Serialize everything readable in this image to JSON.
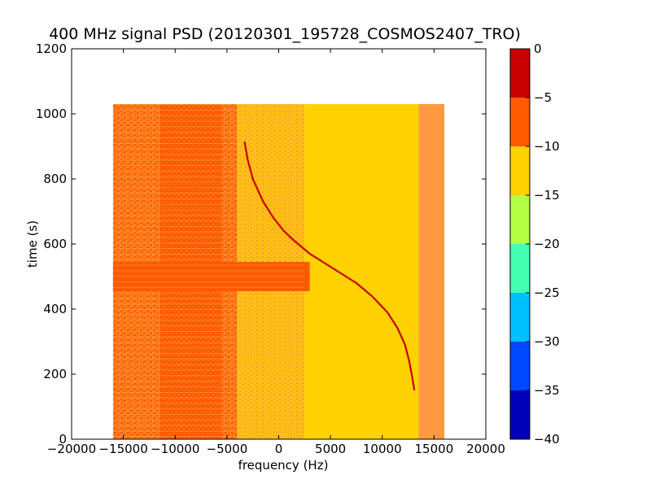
{
  "chart_data": {
    "type": "heatmap",
    "title": "400 MHz signal PSD (20120301_195728_COSMOS2407_TRO)",
    "xlabel": "frequency (Hz)",
    "ylabel": "time (s)",
    "xlim": [
      -20000,
      20000
    ],
    "ylim": [
      0,
      1200
    ],
    "x_ticks": [
      -20000,
      -15000,
      -10000,
      -5000,
      0,
      5000,
      10000,
      15000,
      20000
    ],
    "x_tick_labels": [
      "−20000",
      "−15000",
      "−10000",
      "−5000",
      "0",
      "5000",
      "10000",
      "15000",
      "20000"
    ],
    "y_ticks": [
      0,
      200,
      400,
      600,
      800,
      1000,
      1200
    ],
    "y_tick_labels": [
      "0",
      "200",
      "400",
      "600",
      "800",
      "1000",
      "1200"
    ],
    "data_extent": {
      "x": [
        -16000,
        16000
      ],
      "y": [
        0,
        1030
      ]
    },
    "colorbar": {
      "levels": [
        -40,
        -35,
        -30,
        -25,
        -20,
        -15,
        -10,
        -5,
        0
      ],
      "tick_labels": [
        "−40",
        "−35",
        "−30",
        "−25",
        "−20",
        "−15",
        "−10",
        "−5",
        "0"
      ],
      "band_colors": [
        "#0000b8",
        "#0048ff",
        "#00c0ff",
        "#44ffb2",
        "#b4ff44",
        "#ffd200",
        "#ff5a00",
        "#c80000"
      ]
    },
    "regions": [
      {
        "x": [
          -16000,
          -4000
        ],
        "y": [
          0,
          1030
        ],
        "level_range": [
          -10,
          -5
        ],
        "color": "#ff8a30",
        "description": "mixed -10..-5 (textured)"
      },
      {
        "x": [
          -11500,
          -5500
        ],
        "y": [
          0,
          1030
        ],
        "level_range": [
          -10,
          -5
        ],
        "color": "#ff6a10",
        "description": "mixed -10..-5 (textured)"
      },
      {
        "x": [
          -4000,
          2500
        ],
        "y": [
          0,
          1030
        ],
        "level_range": [
          -15,
          -10
        ],
        "color": "#ffbc14",
        "description": "transition (textured)"
      },
      {
        "x": [
          2500,
          13500
        ],
        "y": [
          0,
          1030
        ],
        "level_range": [
          -15,
          -10
        ],
        "color": "#ffd200"
      },
      {
        "x": [
          13500,
          16000
        ],
        "y": [
          0,
          1030
        ],
        "level_range": [
          -10,
          -5
        ],
        "color": "#ff9a40"
      },
      {
        "x": [
          -16000,
          3000
        ],
        "y": [
          455,
          545
        ],
        "level_range": [
          -10,
          -5
        ],
        "color": "#ff5a00"
      }
    ],
    "signal_trace": {
      "color": "#c80000",
      "points": [
        [
          -3300,
          915
        ],
        [
          -3000,
          860
        ],
        [
          -2500,
          800
        ],
        [
          -1500,
          730
        ],
        [
          -500,
          680
        ],
        [
          500,
          640
        ],
        [
          1500,
          610
        ],
        [
          3000,
          570
        ],
        [
          4500,
          540
        ],
        [
          6000,
          510
        ],
        [
          7500,
          480
        ],
        [
          9000,
          440
        ],
        [
          10500,
          390
        ],
        [
          11500,
          340
        ],
        [
          12200,
          290
        ],
        [
          12600,
          240
        ],
        [
          12900,
          190
        ],
        [
          13100,
          150
        ]
      ]
    }
  }
}
